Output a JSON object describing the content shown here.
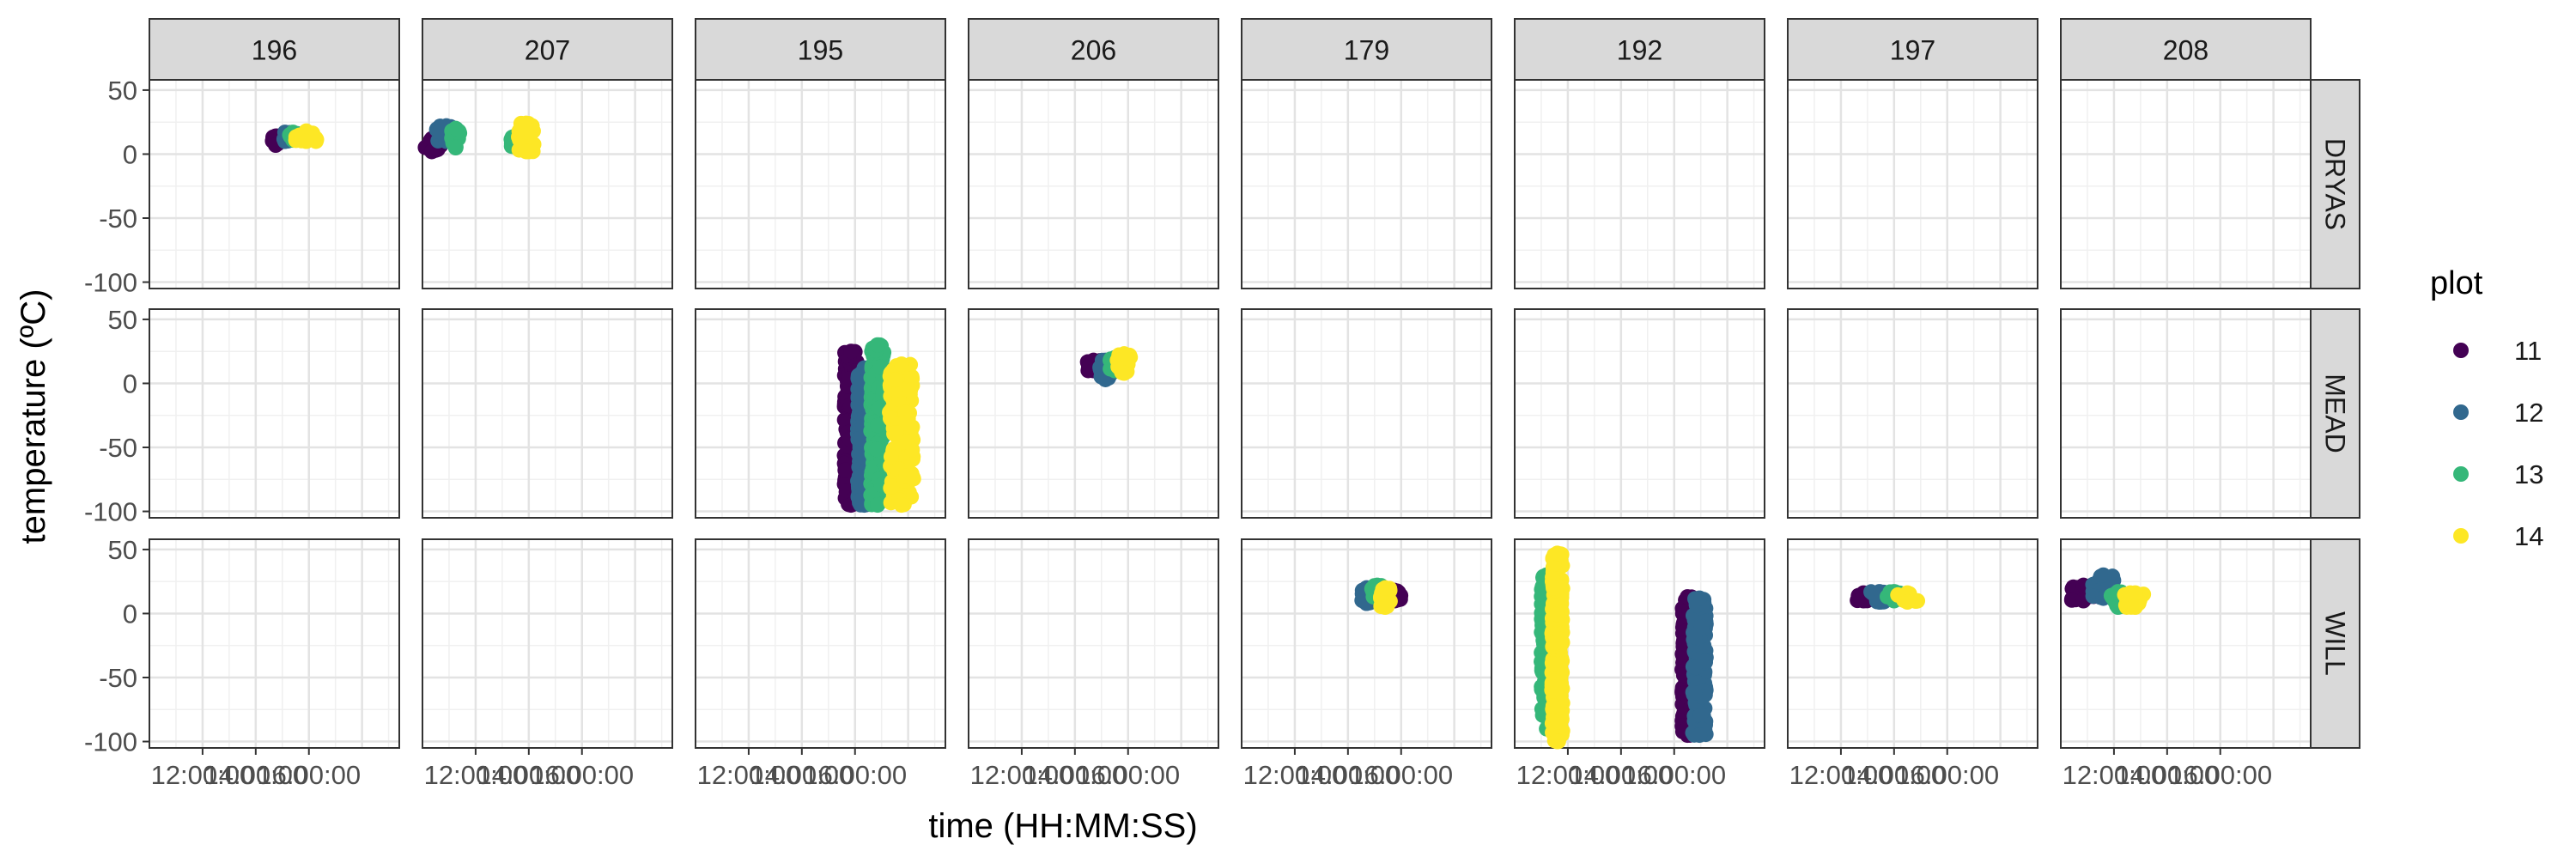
{
  "chart_data": {
    "type": "scatter",
    "facet_rows": [
      "DRYAS",
      "MEAD",
      "WILL"
    ],
    "facet_cols": [
      "196",
      "207",
      "195",
      "206",
      "179",
      "192",
      "197",
      "208"
    ],
    "xlabel": "time (HH:MM:SS)",
    "ylabel": "temperature (ºC)",
    "x_unit": "hours",
    "x_tick_labels": [
      "12:00:00",
      "14:00:00",
      "16:00:00"
    ],
    "x_ticks": [
      12,
      14,
      16
    ],
    "xlim": [
      10,
      19.4
    ],
    "y_ticks": [
      50,
      0,
      -50,
      -100
    ],
    "ylim": [
      -105,
      58
    ],
    "grid": true,
    "legend": {
      "title": "plot",
      "position": "right",
      "entries": [
        {
          "label": "11",
          "color": "#440154"
        },
        {
          "label": "12",
          "color": "#31688e"
        },
        {
          "label": "13",
          "color": "#35b779"
        },
        {
          "label": "14",
          "color": "#fde725"
        }
      ]
    },
    "clusters": [
      {
        "row": "DRYAS",
        "col": "196",
        "plot": "11",
        "x": [
          14.6,
          14.9
        ],
        "y": [
          7,
          14
        ]
      },
      {
        "row": "DRYAS",
        "col": "196",
        "plot": "12",
        "x": [
          14.9,
          15.3
        ],
        "y": [
          10,
          17
        ]
      },
      {
        "row": "DRYAS",
        "col": "196",
        "plot": "13",
        "x": [
          15.2,
          15.6
        ],
        "y": [
          11,
          17
        ]
      },
      {
        "row": "DRYAS",
        "col": "196",
        "plot": "14",
        "x": [
          15.5,
          16.3
        ],
        "y": [
          10,
          18
        ]
      },
      {
        "row": "DRYAS",
        "col": "207",
        "plot": "11",
        "x": [
          10.0,
          10.7
        ],
        "y": [
          2,
          12
        ]
      },
      {
        "row": "DRYAS",
        "col": "207",
        "plot": "12",
        "x": [
          10.5,
          11.3
        ],
        "y": [
          10,
          22
        ]
      },
      {
        "row": "DRYAS",
        "col": "207",
        "plot": "13",
        "x": [
          11.1,
          11.4
        ],
        "y": [
          5,
          20
        ]
      },
      {
        "row": "DRYAS",
        "col": "207",
        "plot": "13",
        "x": [
          13.3,
          13.8
        ],
        "y": [
          5,
          15
        ]
      },
      {
        "row": "DRYAS",
        "col": "207",
        "plot": "14",
        "x": [
          13.6,
          14.2
        ],
        "y": [
          2,
          24
        ]
      },
      {
        "row": "MEAD",
        "col": "195",
        "plot": "11",
        "x": [
          15.6,
          16.1
        ],
        "y": [
          -95,
          25
        ]
      },
      {
        "row": "MEAD",
        "col": "195",
        "plot": "12",
        "x": [
          16.1,
          16.6
        ],
        "y": [
          -95,
          12
        ]
      },
      {
        "row": "MEAD",
        "col": "195",
        "plot": "13",
        "x": [
          16.6,
          17.1
        ],
        "y": [
          -95,
          30
        ]
      },
      {
        "row": "MEAD",
        "col": "195",
        "plot": "14",
        "x": [
          17.3,
          18.2
        ],
        "y": [
          -95,
          15
        ]
      },
      {
        "row": "MEAD",
        "col": "206",
        "plot": "11",
        "x": [
          14.4,
          15.0
        ],
        "y": [
          10,
          18
        ]
      },
      {
        "row": "MEAD",
        "col": "206",
        "plot": "12",
        "x": [
          14.9,
          15.4
        ],
        "y": [
          3,
          18
        ]
      },
      {
        "row": "MEAD",
        "col": "206",
        "plot": "13",
        "x": [
          15.3,
          15.7
        ],
        "y": [
          10,
          20
        ]
      },
      {
        "row": "MEAD",
        "col": "206",
        "plot": "14",
        "x": [
          15.6,
          16.1
        ],
        "y": [
          8,
          23
        ]
      },
      {
        "row": "WILL",
        "col": "179",
        "plot": "12",
        "x": [
          14.5,
          14.9
        ],
        "y": [
          8,
          20
        ]
      },
      {
        "row": "WILL",
        "col": "179",
        "plot": "13",
        "x": [
          14.9,
          15.3
        ],
        "y": [
          12,
          22
        ]
      },
      {
        "row": "WILL",
        "col": "179",
        "plot": "14",
        "x": [
          15.2,
          15.6
        ],
        "y": [
          5,
          20
        ]
      },
      {
        "row": "WILL",
        "col": "179",
        "plot": "11",
        "x": [
          15.5,
          16.0
        ],
        "y": [
          10,
          18
        ]
      },
      {
        "row": "WILL",
        "col": "192",
        "plot": "13",
        "x": [
          11.0,
          11.4
        ],
        "y": [
          -90,
          30
        ]
      },
      {
        "row": "WILL",
        "col": "192",
        "plot": "14",
        "x": [
          11.4,
          11.8
        ],
        "y": [
          -100,
          47
        ]
      },
      {
        "row": "WILL",
        "col": "192",
        "plot": "11",
        "x": [
          16.3,
          16.7
        ],
        "y": [
          -95,
          13
        ]
      },
      {
        "row": "WILL",
        "col": "192",
        "plot": "12",
        "x": [
          16.7,
          17.2
        ],
        "y": [
          -95,
          12
        ]
      },
      {
        "row": "WILL",
        "col": "197",
        "plot": "11",
        "x": [
          12.5,
          13.2
        ],
        "y": [
          10,
          16
        ]
      },
      {
        "row": "WILL",
        "col": "197",
        "plot": "12",
        "x": [
          13.1,
          13.8
        ],
        "y": [
          9,
          17
        ]
      },
      {
        "row": "WILL",
        "col": "197",
        "plot": "13",
        "x": [
          13.7,
          14.3
        ],
        "y": [
          10,
          17
        ]
      },
      {
        "row": "WILL",
        "col": "197",
        "plot": "14",
        "x": [
          14.1,
          14.9
        ],
        "y": [
          9,
          16
        ]
      },
      {
        "row": "WILL",
        "col": "208",
        "plot": "11",
        "x": [
          10.4,
          11.3
        ],
        "y": [
          10,
          22
        ]
      },
      {
        "row": "WILL",
        "col": "208",
        "plot": "12",
        "x": [
          11.2,
          12.0
        ],
        "y": [
          12,
          30
        ]
      },
      {
        "row": "WILL",
        "col": "208",
        "plot": "13",
        "x": [
          11.8,
          12.5
        ],
        "y": [
          5,
          17
        ]
      },
      {
        "row": "WILL",
        "col": "208",
        "plot": "14",
        "x": [
          12.4,
          13.2
        ],
        "y": [
          5,
          16
        ]
      }
    ]
  }
}
